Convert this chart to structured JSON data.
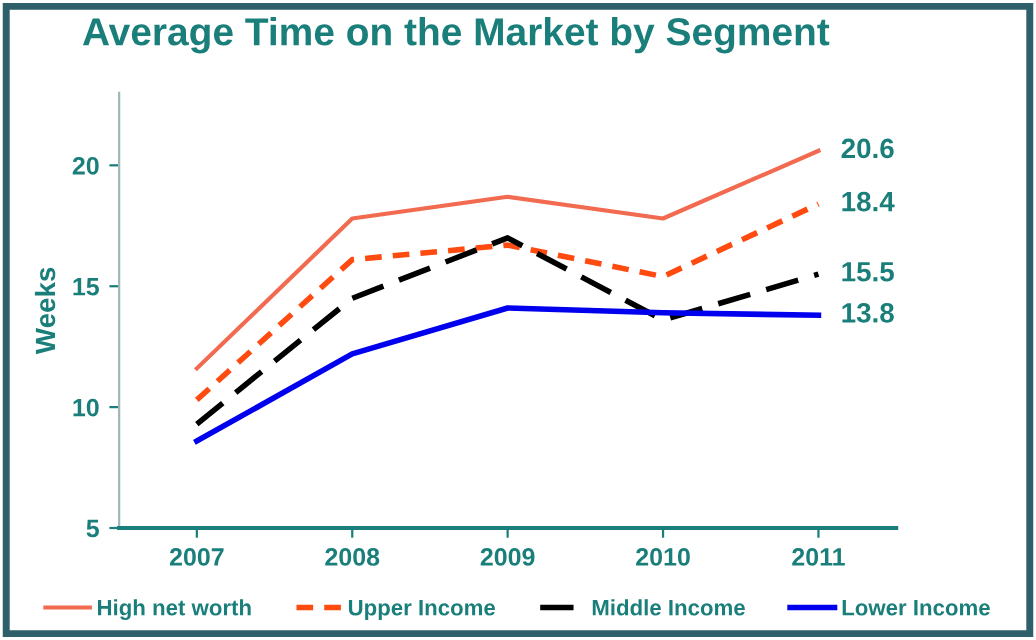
{
  "chart_data": {
    "type": "line",
    "title": "Average Time on the Market by Segment",
    "ylabel": "Weeks",
    "categories": [
      "2007",
      "2008",
      "2009",
      "2010",
      "2011"
    ],
    "series": [
      {
        "name": "High net worth",
        "color": "#f26b50",
        "line_style": "solid",
        "values": [
          11.6,
          17.8,
          18.7,
          17.8,
          20.6
        ],
        "value_labels": [
          null,
          null,
          null,
          null,
          "20.6"
        ]
      },
      {
        "name": "Upper Income",
        "color": "#ff4a10",
        "line_style": "dashed",
        "values": [
          10.3,
          16.1,
          16.7,
          15.4,
          18.4
        ],
        "value_labels": [
          null,
          null,
          null,
          null,
          "18.4"
        ]
      },
      {
        "name": "Middle Income",
        "color": "#000000",
        "line_style": "dashed",
        "values": [
          9.3,
          14.5,
          17.0,
          13.6,
          15.5
        ],
        "value_labels": [
          null,
          null,
          null,
          null,
          "15.5"
        ]
      },
      {
        "name": "Lower Income",
        "color": "#0000ee",
        "line_style": "solid",
        "values": [
          8.6,
          12.2,
          14.1,
          13.9,
          13.8
        ],
        "value_labels": [
          null,
          null,
          null,
          null,
          "13.8"
        ]
      }
    ],
    "ylim": [
      5,
      23
    ],
    "yticks": [
      5,
      10,
      15,
      20
    ],
    "grid": false,
    "legend": "bottom",
    "marker": "none"
  }
}
